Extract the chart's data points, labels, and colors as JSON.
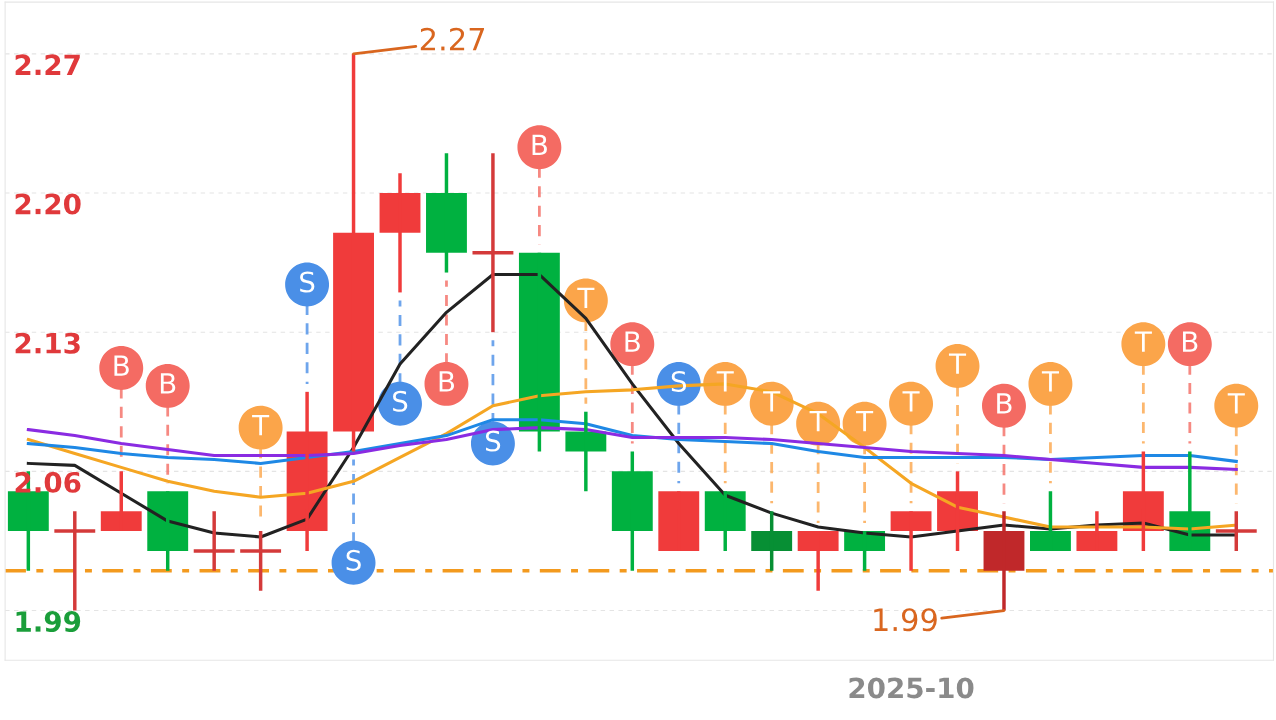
{
  "chart_data": {
    "type": "candlestick",
    "categories": [
      null,
      null,
      null,
      null,
      null,
      null,
      null,
      null,
      null,
      null,
      null,
      null,
      null,
      null,
      null,
      null,
      null,
      null,
      null,
      "2025-10",
      null,
      null,
      null,
      null,
      null,
      null,
      null
    ],
    "ohlc": [
      [
        2.05,
        2.06,
        2.01,
        2.03
      ],
      [
        2.03,
        2.04,
        1.99,
        2.03
      ],
      [
        2.03,
        2.06,
        2.03,
        2.04
      ],
      [
        2.05,
        2.05,
        2.01,
        2.02
      ],
      [
        2.02,
        2.04,
        2.01,
        2.02
      ],
      [
        2.02,
        2.03,
        2.0,
        2.02
      ],
      [
        2.03,
        2.1,
        2.02,
        2.08
      ],
      [
        2.08,
        2.27,
        2.07,
        2.18
      ],
      [
        2.18,
        2.21,
        2.15,
        2.2
      ],
      [
        2.2,
        2.22,
        2.16,
        2.17
      ],
      [
        2.17,
        2.22,
        2.13,
        2.17
      ],
      [
        2.17,
        2.17,
        2.07,
        2.08
      ],
      [
        2.08,
        2.09,
        2.05,
        2.07
      ],
      [
        2.06,
        2.07,
        2.01,
        2.03
      ],
      [
        2.02,
        2.05,
        2.02,
        2.05
      ],
      [
        2.05,
        2.05,
        2.02,
        2.03
      ],
      [
        2.03,
        2.04,
        2.01,
        2.02
      ],
      [
        2.02,
        2.03,
        2.0,
        2.03
      ],
      [
        2.03,
        2.03,
        2.01,
        2.02
      ],
      [
        2.03,
        2.04,
        2.01,
        2.04
      ],
      [
        2.03,
        2.06,
        2.02,
        2.05
      ],
      [
        2.03,
        2.04,
        1.99,
        2.01
      ],
      [
        2.03,
        2.05,
        2.02,
        2.02
      ],
      [
        2.02,
        2.04,
        2.02,
        2.03
      ],
      [
        2.03,
        2.07,
        2.02,
        2.05
      ],
      [
        2.04,
        2.07,
        2.02,
        2.02
      ],
      [
        2.03,
        2.04,
        2.02,
        2.03
      ]
    ],
    "colors": [
      "#00b140",
      "#d43a3a",
      "#f03b3b",
      "#00b140",
      "#d43a3a",
      "#d43a3a",
      "#f03b3b",
      "#f03b3b",
      "#f03b3b",
      "#00b140",
      "#d43a3a",
      "#00b140",
      "#00b140",
      "#00b140",
      "#f03b3b",
      "#00b140",
      "#078f34",
      "#f03b3b",
      "#00b140",
      "#f03b3b",
      "#f03b3b",
      "#c0282a",
      "#00b140",
      "#f03b3b",
      "#f03b3b",
      "#00b140",
      "#d43a3a"
    ],
    "series": [
      {
        "type": "line",
        "color": "#222222",
        "values": [
          2.064,
          2.063,
          2.049,
          2.035,
          2.029,
          2.027,
          2.036,
          2.072,
          2.114,
          2.14,
          2.159,
          2.159,
          2.137,
          2.104,
          2.074,
          2.048,
          2.039,
          2.032,
          2.029,
          2.027,
          2.03,
          2.033,
          2.031,
          2.033,
          2.034,
          2.028,
          2.028
        ]
      },
      {
        "type": "line",
        "color": "#f5a623",
        "values": [
          2.076,
          2.069,
          2.062,
          2.055,
          2.05,
          2.047,
          2.049,
          2.055,
          2.067,
          2.079,
          2.093,
          2.098,
          2.1,
          2.101,
          2.103,
          2.104,
          2.1,
          2.089,
          2.072,
          2.054,
          2.042,
          2.037,
          2.032,
          2.032,
          2.032,
          2.031,
          2.033
        ]
      },
      {
        "type": "line",
        "color": "#1e88e5",
        "values": [
          2.074,
          2.072,
          2.069,
          2.067,
          2.066,
          2.064,
          2.067,
          2.07,
          2.074,
          2.078,
          2.086,
          2.086,
          2.084,
          2.078,
          2.076,
          2.075,
          2.074,
          2.07,
          2.067,
          2.067,
          2.067,
          2.067,
          2.066,
          2.067,
          2.068,
          2.068,
          2.065
        ]
      },
      {
        "type": "line",
        "color": "#8a2be2",
        "values": [
          2.081,
          2.078,
          2.074,
          2.071,
          2.068,
          2.068,
          2.068,
          2.069,
          2.073,
          2.076,
          2.081,
          2.082,
          2.081,
          2.077,
          2.077,
          2.077,
          2.076,
          2.074,
          2.072,
          2.07,
          2.069,
          2.068,
          2.066,
          2.064,
          2.062,
          2.062,
          2.061
        ]
      },
      {
        "type": "scatter",
        "color": "#f46b63",
        "values": [
          null,
          null,
          2.112,
          2.103,
          null,
          null,
          null,
          null,
          null,
          2.104,
          null,
          2.223,
          null,
          2.124,
          null,
          null,
          null,
          null,
          null,
          null,
          null,
          2.093,
          null,
          null,
          null,
          2.124,
          null
        ],
        "value_labels": [
          null,
          null,
          "B",
          "B",
          null,
          null,
          null,
          null,
          null,
          "B",
          null,
          "B",
          null,
          "B",
          null,
          null,
          null,
          null,
          null,
          null,
          null,
          "B",
          null,
          null,
          null,
          "B",
          null
        ]
      },
      {
        "type": "scatter",
        "color": "#4a8fe7",
        "values": [
          null,
          null,
          null,
          null,
          null,
          null,
          2.154,
          2.014,
          2.094,
          null,
          2.074,
          null,
          null,
          null,
          2.104,
          null,
          null,
          null,
          null,
          null,
          null,
          null,
          null,
          null,
          null,
          null,
          null
        ],
        "value_labels": [
          null,
          null,
          null,
          null,
          null,
          null,
          "S",
          "S",
          "S",
          null,
          "S",
          null,
          null,
          null,
          "S",
          null,
          null,
          null,
          null,
          null,
          null,
          null,
          null,
          null,
          null,
          null,
          null
        ]
      },
      {
        "type": "scatter",
        "color": "#fba54a",
        "values": [
          null,
          null,
          null,
          null,
          null,
          2.082,
          null,
          null,
          null,
          null,
          null,
          null,
          2.146,
          null,
          null,
          2.104,
          2.094,
          2.084,
          2.084,
          2.094,
          2.113,
          null,
          2.104,
          null,
          2.124,
          null,
          2.093
        ],
        "value_labels": [
          null,
          null,
          null,
          null,
          null,
          "T",
          null,
          null,
          null,
          null,
          null,
          null,
          "T",
          null,
          null,
          "T",
          "T",
          "T",
          "T",
          "T",
          "T",
          null,
          "T",
          null,
          "T",
          null,
          "T"
        ]
      }
    ],
    "ylim": [
      1.965,
      2.296
    ],
    "yticks": [
      1.99,
      2.06,
      2.13,
      {
        "value": 2.2,
        "label": "2.20"
      },
      2.27
    ],
    "grid": "y",
    "ref_lines": [
      {
        "axis": "y",
        "value": 2.01,
        "color": "#f39a1e",
        "line_style": "dashed"
      }
    ],
    "annotations": [
      "2.27",
      "1.99"
    ]
  }
}
